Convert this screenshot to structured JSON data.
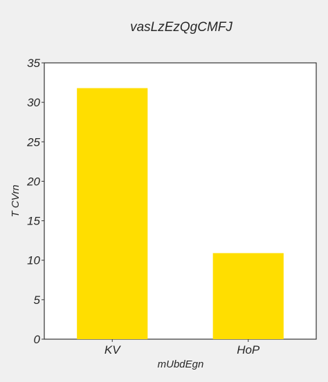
{
  "chart_data": {
    "type": "bar",
    "title": "vasLzEzQgCMFJ",
    "xlabel": "mUbdEgn",
    "ylabel": "T CVrn",
    "categories": [
      "KV",
      "HoP"
    ],
    "values": [
      31.8,
      10.9
    ],
    "ylim": [
      0,
      35
    ],
    "yticks": [
      0,
      5,
      10,
      15,
      20,
      25,
      30,
      35
    ],
    "bar_color": "#ffde00",
    "background_color": "#f0f0f0",
    "plot_background_color": "#ffffff",
    "grid": false,
    "legend": "none"
  }
}
